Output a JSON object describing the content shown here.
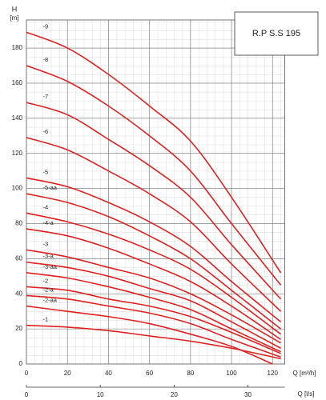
{
  "chart_data": {
    "type": "line",
    "title": "R.P S.S 195",
    "y_label": "H",
    "y_unit": "[m]",
    "x_label": "Q [m³/h]",
    "x2_label": "Q [l/s]",
    "xlim": [
      0,
      126
    ],
    "xticks": [
      0,
      20,
      40,
      60,
      80,
      100,
      120
    ],
    "x2lim": [
      0,
      35
    ],
    "x2ticks": [
      0,
      10,
      20,
      30
    ],
    "ylim": [
      0,
      196
    ],
    "yticks": [
      0,
      20,
      40,
      60,
      80,
      100,
      120,
      140,
      160,
      180
    ],
    "grid": true,
    "series": [
      {
        "name": "-9",
        "color": "#e02020",
        "x": [
          0,
          20,
          40,
          60,
          80,
          100,
          124
        ],
        "values": [
          189,
          180,
          165,
          147,
          127,
          95,
          52
        ]
      },
      {
        "name": "-8",
        "color": "#e02020",
        "x": [
          0,
          20,
          40,
          60,
          80,
          100,
          124
        ],
        "values": [
          170,
          161,
          147,
          130,
          110,
          80,
          45
        ]
      },
      {
        "name": "-7",
        "color": "#e02020",
        "x": [
          0,
          20,
          40,
          60,
          80,
          100,
          124
        ],
        "values": [
          149,
          142,
          128,
          113,
          95,
          68,
          37
        ]
      },
      {
        "name": "-6",
        "color": "#e02020",
        "x": [
          0,
          20,
          40,
          60,
          80,
          100,
          124
        ],
        "values": [
          129,
          122,
          110,
          97,
          81,
          57,
          30
        ]
      },
      {
        "name": "-5",
        "color": "#e02020",
        "x": [
          0,
          20,
          40,
          60,
          80,
          100,
          124
        ],
        "values": [
          106,
          101,
          92,
          81,
          67,
          47,
          24
        ]
      },
      {
        "name": "-5-aa",
        "color": "#e02020",
        "x": [
          0,
          20,
          40,
          60,
          80,
          100,
          124
        ],
        "values": [
          97,
          92,
          84,
          73,
          60,
          42,
          20
        ]
      },
      {
        "name": "-4",
        "color": "#e02020",
        "x": [
          0,
          20,
          40,
          60,
          80,
          100,
          124
        ],
        "values": [
          86,
          81,
          74,
          65,
          54,
          38,
          17
        ]
      },
      {
        "name": "-4-a",
        "color": "#e02020",
        "x": [
          0,
          20,
          40,
          60,
          80,
          100,
          124
        ],
        "values": [
          77,
          73,
          66,
          57,
          47,
          33,
          14
        ]
      },
      {
        "name": "-3",
        "color": "#e02020",
        "x": [
          0,
          20,
          40,
          60,
          80,
          100,
          124
        ],
        "values": [
          65,
          61,
          55,
          49,
          40,
          28,
          12
        ]
      },
      {
        "name": "-3-a",
        "color": "#e02020",
        "x": [
          0,
          20,
          40,
          60,
          80,
          100,
          124
        ],
        "values": [
          58,
          55,
          50,
          43,
          36,
          24,
          9
        ]
      },
      {
        "name": "-3-aa",
        "color": "#e02020",
        "x": [
          0,
          20,
          40,
          60,
          80,
          100,
          124
        ],
        "values": [
          52,
          49,
          44,
          38,
          31,
          20,
          7
        ]
      },
      {
        "name": "-2",
        "color": "#e02020",
        "x": [
          0,
          20,
          40,
          60,
          80,
          100,
          124
        ],
        "values": [
          44,
          42,
          37,
          33,
          27,
          18,
          6
        ]
      },
      {
        "name": "-2-a",
        "color": "#e02020",
        "x": [
          0,
          20,
          40,
          60,
          80,
          100,
          124
        ],
        "values": [
          39,
          37,
          33,
          29,
          23,
          14,
          4
        ]
      },
      {
        "name": "-2-aa",
        "color": "#e02020",
        "x": [
          0,
          20,
          40,
          60,
          80,
          100,
          120
        ],
        "values": [
          33,
          30,
          27,
          23,
          17,
          10,
          0
        ]
      },
      {
        "name": "-1",
        "color": "#e02020",
        "x": [
          0,
          20,
          40,
          60,
          80,
          100,
          124
        ],
        "values": [
          22,
          21,
          19,
          16,
          13,
          9,
          3
        ]
      }
    ]
  }
}
